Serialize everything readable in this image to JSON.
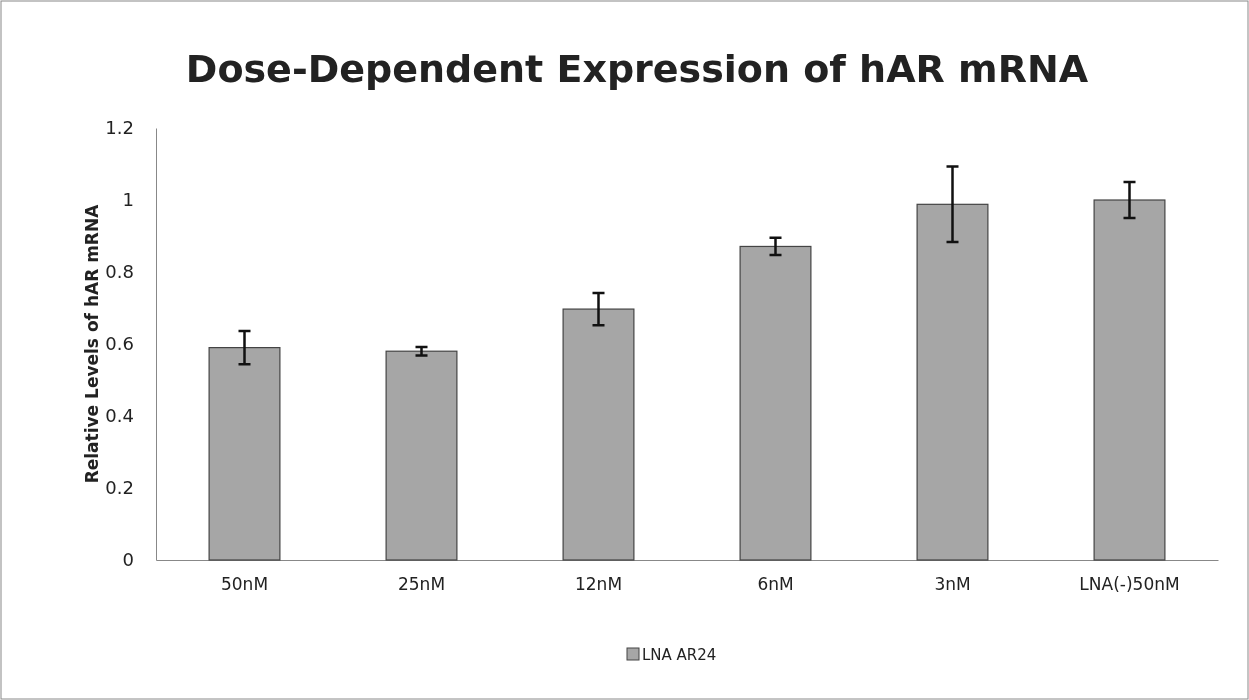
{
  "chart_data": {
    "type": "bar",
    "title": "Dose-Dependent Expression of hAR mRNA",
    "ylabel": "Relative Levels of hAR mRNA",
    "categories": [
      "50nM",
      "25nM",
      "12nM",
      "6nM",
      "3nM",
      "LNA(-)50nM"
    ],
    "series": [
      {
        "name": "LNA AR24",
        "color": "#a6a6a6",
        "values": [
          0.59,
          0.58,
          0.697,
          0.871,
          0.988,
          1.0
        ],
        "errors": [
          0.046,
          0.012,
          0.045,
          0.024,
          0.105,
          0.05
        ]
      }
    ],
    "ylim": [
      0,
      1.2
    ],
    "yticks": [
      0,
      0.2,
      0.4,
      0.6,
      0.8,
      1,
      1.2
    ],
    "grid": false,
    "legend": "bottom"
  }
}
